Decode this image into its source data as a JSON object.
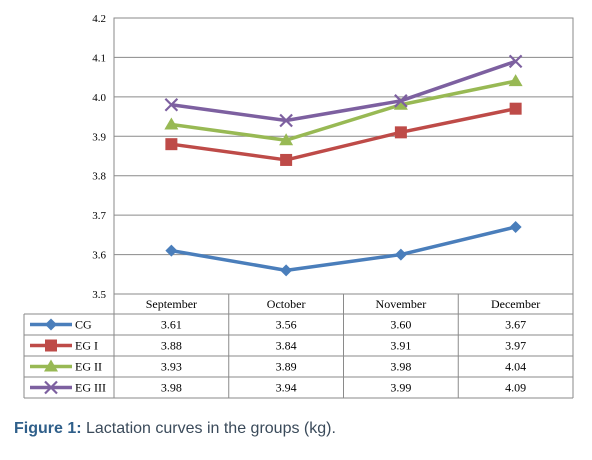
{
  "chart_data": {
    "type": "line",
    "categories": [
      "September",
      "October",
      "November",
      "December"
    ],
    "series": [
      {
        "name": "CG",
        "values": [
          3.61,
          3.56,
          3.6,
          3.67
        ],
        "display": [
          "3.61",
          "3.56",
          "3.60",
          "3.67"
        ],
        "color": "#4a7ebb",
        "marker": "diamond"
      },
      {
        "name": "EG I",
        "values": [
          3.88,
          3.84,
          3.91,
          3.97
        ],
        "display": [
          "3.88",
          "3.84",
          "3.91",
          "3.97"
        ],
        "color": "#be4b48",
        "marker": "square"
      },
      {
        "name": "EG II",
        "values": [
          3.93,
          3.89,
          3.98,
          4.04
        ],
        "display": [
          "3.93",
          "3.89",
          "3.98",
          "4.04"
        ],
        "color": "#98b954",
        "marker": "triangle"
      },
      {
        "name": "EG III",
        "values": [
          3.98,
          3.94,
          3.99,
          4.09
        ],
        "display": [
          "3.98",
          "3.94",
          "3.99",
          "4.09"
        ],
        "color": "#7d60a0",
        "marker": "x"
      }
    ],
    "ylim": [
      3.5,
      4.2
    ],
    "yticks": [
      "3.5",
      "3.6",
      "3.7",
      "3.8",
      "3.9",
      "4.0",
      "4.1",
      "4.2"
    ],
    "grid": true,
    "legend": "data-table"
  },
  "caption": {
    "label": "Figure 1:",
    "text": " Lactation curves in the groups (kg)."
  }
}
